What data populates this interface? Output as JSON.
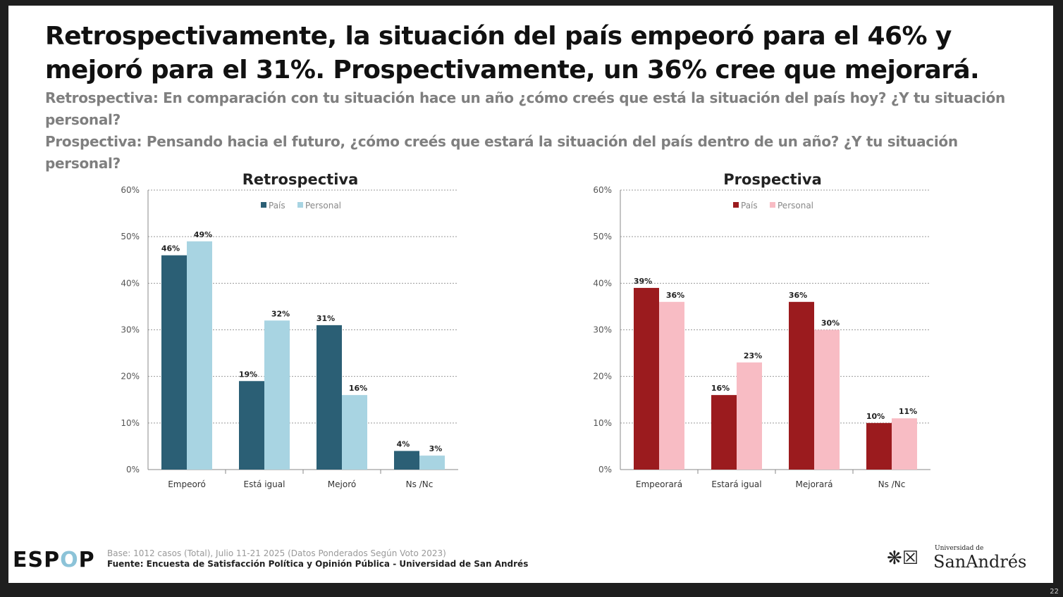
{
  "title": "Retrospectivamente, la situación del país empeoró para el 46% y mejoró para el 31%. Prospectivamente, un 36% cree que mejorará.",
  "subtitle_retro": "Retrospectiva: En comparación con tu situación hace un año ¿cómo creés que está la situación del país hoy? ¿Y tu situación personal?",
  "subtitle_pros": "Prospectiva: Pensando hacia el futuro, ¿cómo creés que estará la situación del país dentro de un año? ¿Y tu situación personal?",
  "footer": {
    "base": "Base: 1012 casos (Total), Julio 11-21 2025 (Datos Ponderados Según Voto 2023)",
    "source": "Fuente: Encuesta de Satisfacción Política y Opinión Pública - Universidad de San Andrés",
    "logo_left": "ESPOP",
    "logo_right_small": "Universidad de",
    "logo_right_big": "SanAndrés",
    "page": "22"
  },
  "chart_data": [
    {
      "type": "bar",
      "title": "Retrospectiva",
      "categories": [
        "Empeoró",
        "Está igual",
        "Mejoró",
        "Ns /Nc"
      ],
      "series": [
        {
          "name": "País",
          "values": [
            46,
            19,
            31,
            4
          ],
          "color": "#2b5f75"
        },
        {
          "name": "Personal",
          "values": [
            49,
            32,
            16,
            3
          ],
          "color": "#a8d4e2"
        }
      ],
      "ylim": [
        0,
        60
      ],
      "yticks": [
        "0%",
        "10%",
        "20%",
        "30%",
        "40%",
        "50%",
        "60%"
      ],
      "grid": true,
      "legend": "top"
    },
    {
      "type": "bar",
      "title": "Prospectiva",
      "categories": [
        "Empeorará",
        "Estará igual",
        "Mejorará",
        "Ns /Nc"
      ],
      "series": [
        {
          "name": "País",
          "values": [
            39,
            16,
            36,
            10
          ],
          "color": "#9b1b1e"
        },
        {
          "name": "Personal",
          "values": [
            36,
            23,
            30,
            11
          ],
          "color": "#f8bcc4"
        }
      ],
      "ylim": [
        0,
        60
      ],
      "yticks": [
        "0%",
        "10%",
        "20%",
        "30%",
        "40%",
        "50%",
        "60%"
      ],
      "grid": true,
      "legend": "top"
    }
  ]
}
